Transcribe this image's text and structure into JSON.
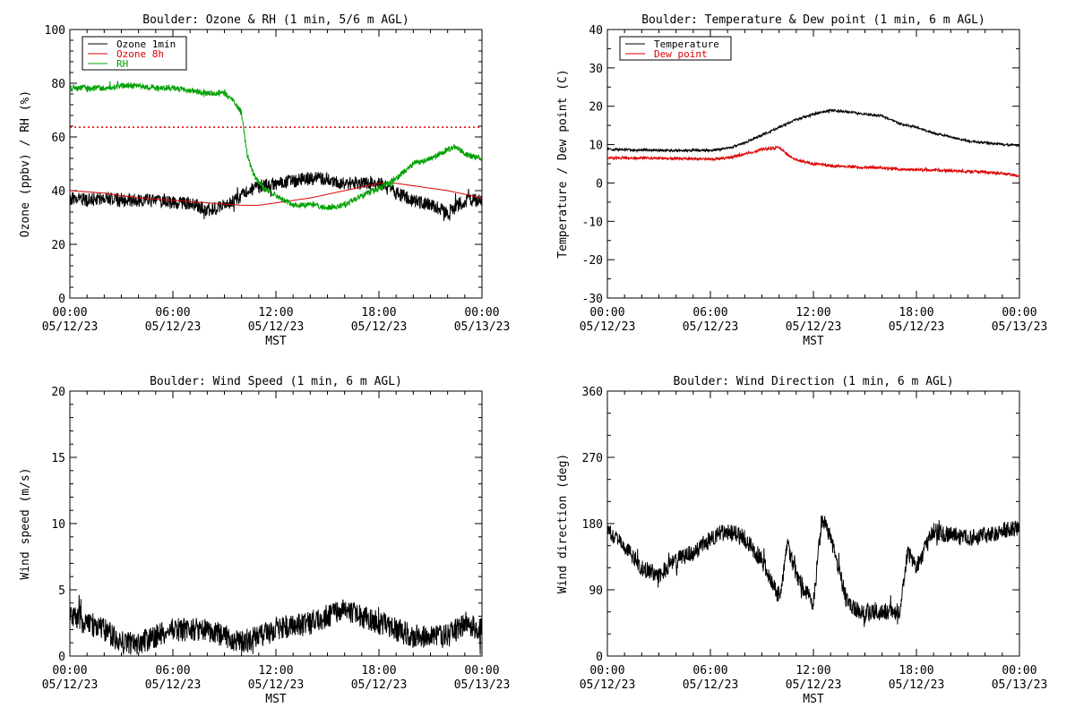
{
  "chart_data": [
    {
      "type": "line",
      "title": "Boulder: Ozone & RH (1 min, 5/6 m AGL)",
      "xlabel": "MST",
      "ylabel": "Ozone (ppbv) / RH (%)",
      "ylim": [
        0,
        110
      ],
      "yticks": [
        "0",
        "20",
        "40",
        "60",
        "80",
        "100"
      ],
      "x_ticks": [
        {
          "time": "00:00",
          "date": "05/12/23"
        },
        {
          "time": "06:00",
          "date": "05/12/23"
        },
        {
          "time": "12:00",
          "date": "05/12/23"
        },
        {
          "time": "18:00",
          "date": "05/12/23"
        },
        {
          "time": "00:00",
          "date": "05/13/23"
        }
      ],
      "legend": "top-left",
      "reference_line": {
        "y": 70,
        "color": "#dd0000",
        "style": "dotted"
      },
      "series": [
        {
          "name": "Ozone 1min",
          "color": "#000000",
          "noise": 2.8,
          "points": [
            [
              0,
              41
            ],
            [
              1,
              40
            ],
            [
              2,
              41
            ],
            [
              3,
              40
            ],
            [
              4,
              40
            ],
            [
              5,
              40
            ],
            [
              6,
              39
            ],
            [
              7,
              39
            ],
            [
              8,
              36
            ],
            [
              9,
              38
            ],
            [
              10,
              42
            ],
            [
              11,
              46
            ],
            [
              12,
              47
            ],
            [
              13,
              48
            ],
            [
              14,
              49
            ],
            [
              15,
              49
            ],
            [
              16,
              47
            ],
            [
              17,
              47
            ],
            [
              18,
              47
            ],
            [
              19,
              43
            ],
            [
              20,
              40
            ],
            [
              21,
              38
            ],
            [
              22,
              35
            ],
            [
              23,
              40
            ],
            [
              24,
              40
            ]
          ]
        },
        {
          "name": "Ozone 8h",
          "color": "#dd0000",
          "noise": 0,
          "points": [
            [
              0,
              44
            ],
            [
              2,
              43
            ],
            [
              4,
              41
            ],
            [
              6,
              40
            ],
            [
              8,
              39
            ],
            [
              10,
              38
            ],
            [
              11,
              38
            ],
            [
              12,
              39
            ],
            [
              14,
              41
            ],
            [
              16,
              44
            ],
            [
              18,
              47
            ],
            [
              19,
              47
            ],
            [
              20,
              46
            ],
            [
              22,
              44
            ],
            [
              24,
              41
            ]
          ]
        },
        {
          "name": "RH",
          "color": "#00a000",
          "noise": 1.2,
          "points": [
            [
              0,
              86
            ],
            [
              1,
              86
            ],
            [
              2,
              86
            ],
            [
              3,
              87
            ],
            [
              4,
              87
            ],
            [
              5,
              86
            ],
            [
              6,
              86
            ],
            [
              7,
              85
            ],
            [
              8,
              84
            ],
            [
              9,
              84
            ],
            [
              9.6,
              80
            ],
            [
              10,
              76
            ],
            [
              10.3,
              60
            ],
            [
              10.6,
              52
            ],
            [
              11,
              47
            ],
            [
              11.5,
              44
            ],
            [
              12,
              42
            ],
            [
              13,
              38
            ],
            [
              14,
              38
            ],
            [
              15,
              37
            ],
            [
              16,
              38
            ],
            [
              17,
              42
            ],
            [
              18,
              45
            ],
            [
              19,
              49
            ],
            [
              20,
              55
            ],
            [
              21,
              57
            ],
            [
              22,
              61
            ],
            [
              22.5,
              62
            ],
            [
              23,
              59
            ],
            [
              24,
              57
            ]
          ]
        }
      ]
    },
    {
      "type": "line",
      "title": "Boulder: Temperature & Dew point (1 min, 6 m AGL)",
      "xlabel": "MST",
      "ylabel": "Temperature / Dew point (C)",
      "ylim": [
        -30,
        40
      ],
      "yticks": [
        "-30",
        "-20",
        "-10",
        "0",
        "10",
        "20",
        "30",
        "40"
      ],
      "x_ticks": [
        {
          "time": "00:00",
          "date": "05/12/23"
        },
        {
          "time": "06:00",
          "date": "05/12/23"
        },
        {
          "time": "12:00",
          "date": "05/12/23"
        },
        {
          "time": "18:00",
          "date": "05/12/23"
        },
        {
          "time": "00:00",
          "date": "05/13/23"
        }
      ],
      "legend": "top-left",
      "series": [
        {
          "name": "Temperature",
          "color": "#000000",
          "noise": 0.3,
          "points": [
            [
              0,
              8.8
            ],
            [
              2,
              8.6
            ],
            [
              4,
              8.5
            ],
            [
              6,
              8.5
            ],
            [
              7,
              9
            ],
            [
              8,
              10.5
            ],
            [
              9,
              12.5
            ],
            [
              10,
              14.5
            ],
            [
              11,
              16.5
            ],
            [
              12,
              18
            ],
            [
              13,
              19
            ],
            [
              14,
              18.5
            ],
            [
              15,
              18
            ],
            [
              16,
              17.5
            ],
            [
              17,
              15.5
            ],
            [
              18,
              14.5
            ],
            [
              19,
              13
            ],
            [
              20,
              12
            ],
            [
              21,
              11
            ],
            [
              22,
              10.5
            ],
            [
              23,
              10
            ],
            [
              24,
              9.8
            ]
          ]
        },
        {
          "name": "Dew point",
          "color": "#dd0000",
          "noise": 0.35,
          "points": [
            [
              0,
              6.5
            ],
            [
              2,
              6.5
            ],
            [
              4,
              6.4
            ],
            [
              6,
              6.2
            ],
            [
              7,
              6.5
            ],
            [
              8,
              7.5
            ],
            [
              9,
              8.8
            ],
            [
              10,
              9.2
            ],
            [
              10.5,
              7.5
            ],
            [
              11,
              6
            ],
            [
              12,
              5
            ],
            [
              13,
              4.5
            ],
            [
              14,
              4.3
            ],
            [
              15,
              4
            ],
            [
              16,
              4
            ],
            [
              17,
              3.5
            ],
            [
              18,
              3.5
            ],
            [
              19,
              3.3
            ],
            [
              20,
              3.2
            ],
            [
              21,
              3
            ],
            [
              22,
              2.8
            ],
            [
              23,
              2.5
            ],
            [
              24,
              1.8
            ]
          ]
        }
      ]
    },
    {
      "type": "line",
      "title": "Boulder: Wind Speed (1 min, 6 m AGL)",
      "xlabel": "MST",
      "ylabel": "Wind speed (m/s)",
      "ylim": [
        0,
        20
      ],
      "yticks": [
        "0",
        "5",
        "10",
        "15",
        "20"
      ],
      "x_ticks": [
        {
          "time": "00:00",
          "date": "05/12/23"
        },
        {
          "time": "06:00",
          "date": "05/12/23"
        },
        {
          "time": "12:00",
          "date": "05/12/23"
        },
        {
          "time": "18:00",
          "date": "05/12/23"
        },
        {
          "time": "00:00",
          "date": "05/13/23"
        }
      ],
      "series": [
        {
          "color": "#000000",
          "noise": 0.9,
          "floor": 0,
          "points": [
            [
              0,
              3
            ],
            [
              1,
              2.5
            ],
            [
              2,
              2
            ],
            [
              3,
              1
            ],
            [
              4,
              1
            ],
            [
              5,
              1.5
            ],
            [
              6,
              2
            ],
            [
              7,
              2
            ],
            [
              8,
              2
            ],
            [
              9,
              1.5
            ],
            [
              10,
              1
            ],
            [
              11,
              1.5
            ],
            [
              12,
              2
            ],
            [
              13,
              2.3
            ],
            [
              14,
              2.5
            ],
            [
              15,
              3
            ],
            [
              16,
              3.5
            ],
            [
              17,
              3
            ],
            [
              18,
              2.5
            ],
            [
              19,
              2
            ],
            [
              20,
              1.5
            ],
            [
              21,
              1.5
            ],
            [
              22,
              1.5
            ],
            [
              23,
              2.5
            ],
            [
              24,
              2
            ]
          ]
        }
      ]
    },
    {
      "type": "line",
      "title": "Boulder: Wind Direction (1 min, 6 m AGL)",
      "xlabel": "MST",
      "ylabel": "Wind direction (deg)",
      "ylim": [
        0,
        360
      ],
      "yticks": [
        "0",
        "90",
        "180",
        "270",
        "360"
      ],
      "x_ticks": [
        {
          "time": "00:00",
          "date": "05/12/23"
        },
        {
          "time": "06:00",
          "date": "05/12/23"
        },
        {
          "time": "12:00",
          "date": "05/12/23"
        },
        {
          "time": "18:00",
          "date": "05/12/23"
        },
        {
          "time": "00:00",
          "date": "05/13/23"
        }
      ],
      "series": [
        {
          "color": "#000000",
          "noise": 12,
          "floor": 10,
          "points": [
            [
              0,
              170
            ],
            [
              1,
              150
            ],
            [
              2,
              120
            ],
            [
              3,
              110
            ],
            [
              4,
              130
            ],
            [
              5,
              140
            ],
            [
              6,
              160
            ],
            [
              7,
              170
            ],
            [
              8,
              160
            ],
            [
              9,
              130
            ],
            [
              10,
              80
            ],
            [
              10.5,
              150
            ],
            [
              11,
              110
            ],
            [
              12,
              70
            ],
            [
              12.5,
              190
            ],
            [
              13,
              160
            ],
            [
              14,
              70
            ],
            [
              15,
              60
            ],
            [
              16,
              60
            ],
            [
              17,
              60
            ],
            [
              17.5,
              140
            ],
            [
              18,
              120
            ],
            [
              19,
              170
            ],
            [
              20,
              165
            ],
            [
              21,
              160
            ],
            [
              22,
              165
            ],
            [
              23,
              170
            ],
            [
              24,
              175
            ]
          ]
        }
      ]
    }
  ]
}
